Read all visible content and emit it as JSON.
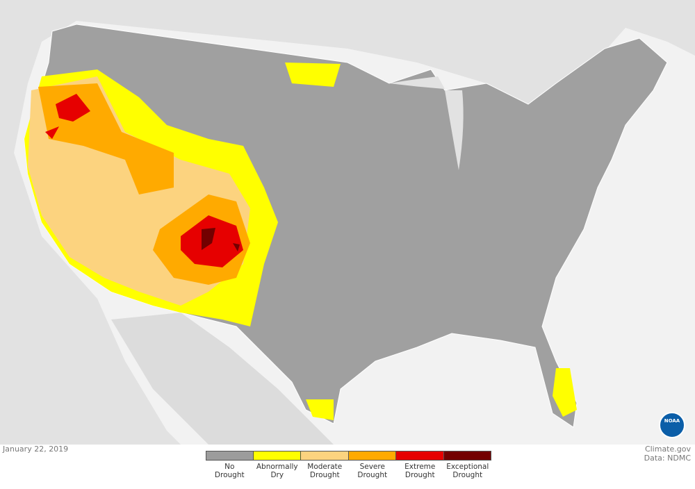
{
  "date": "January 22, 2019",
  "credit": {
    "source": "Climate.gov",
    "data": "Data: NDMC"
  },
  "logo_text": "NOAA",
  "legend": {
    "items": [
      {
        "label": "No Drought",
        "color": "#9c9c9c"
      },
      {
        "label": "Abnormally Dry",
        "color": "#ffff00"
      },
      {
        "label": "Moderate Drought",
        "color": "#fcd37f"
      },
      {
        "label": "Severe Drought",
        "color": "#ffaa00"
      },
      {
        "label": "Extreme Drought",
        "color": "#e60000"
      },
      {
        "label": "Exceptional Drought",
        "color": "#730000"
      }
    ]
  }
}
